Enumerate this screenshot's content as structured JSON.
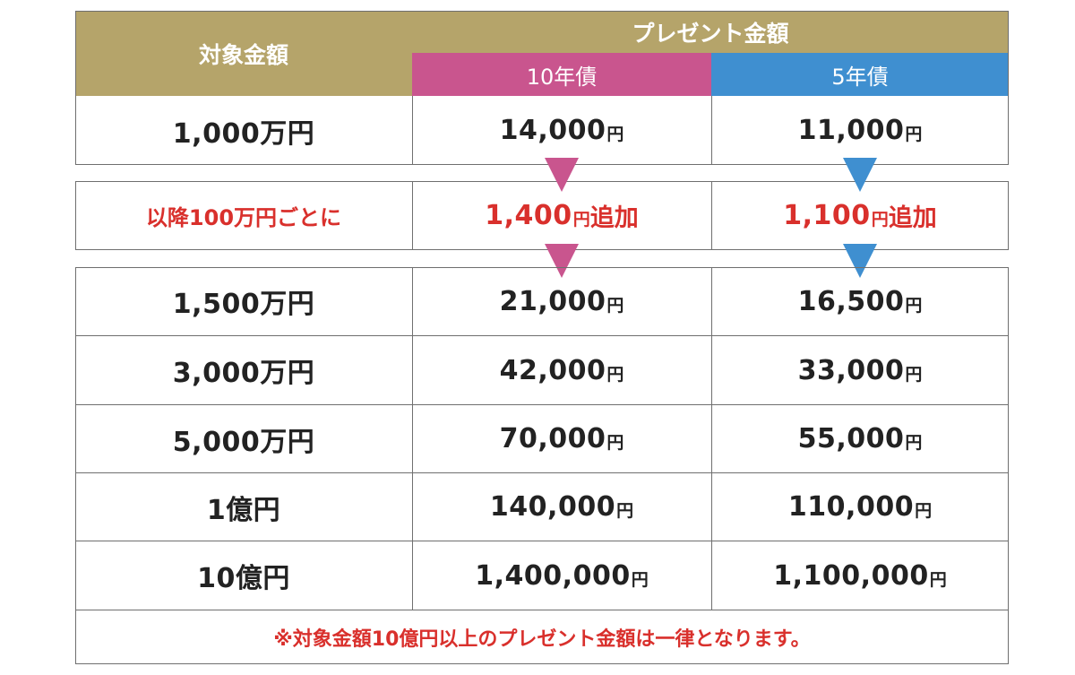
{
  "colors": {
    "header_gold": "#b5a46a",
    "ten_year_pink": "#c9558e",
    "five_year_blue": "#3f8fd0",
    "accent_red": "#d9302c",
    "border": "#6f6f6f"
  },
  "header": {
    "target_amount": "対象金額",
    "present_amount": "プレゼント金額",
    "ten_year": "10年債",
    "five_year": "5年債"
  },
  "first_row": {
    "target": "1,000万円",
    "ten_year_value": "14,000",
    "ten_year_unit": "円",
    "five_year_value": "11,000",
    "five_year_unit": "円"
  },
  "increment_row": {
    "label": "以降100万円ごとに",
    "ten_year_value": "1,400",
    "ten_year_unit": "円",
    "ten_year_suffix": "追加",
    "five_year_value": "1,100",
    "five_year_unit": "円",
    "five_year_suffix": "追加"
  },
  "rows": [
    {
      "target": "1,500万円",
      "ten_year_value": "21,000",
      "ten_year_unit": "円",
      "five_year_value": "16,500",
      "five_year_unit": "円"
    },
    {
      "target": "3,000万円",
      "ten_year_value": "42,000",
      "ten_year_unit": "円",
      "five_year_value": "33,000",
      "five_year_unit": "円"
    },
    {
      "target": "5,000万円",
      "ten_year_value": "70,000",
      "ten_year_unit": "円",
      "five_year_value": "55,000",
      "five_year_unit": "円"
    },
    {
      "target": "1億円",
      "ten_year_value": "140,000",
      "ten_year_unit": "円",
      "five_year_value": "110,000",
      "five_year_unit": "円"
    },
    {
      "target": "10億円",
      "ten_year_value": "1,400,000",
      "ten_year_unit": "円",
      "five_year_value": "1,100,000",
      "five_year_unit": "円"
    }
  ],
  "footnote": "※対象金額10億円以上のプレゼント金額は一律となります。"
}
